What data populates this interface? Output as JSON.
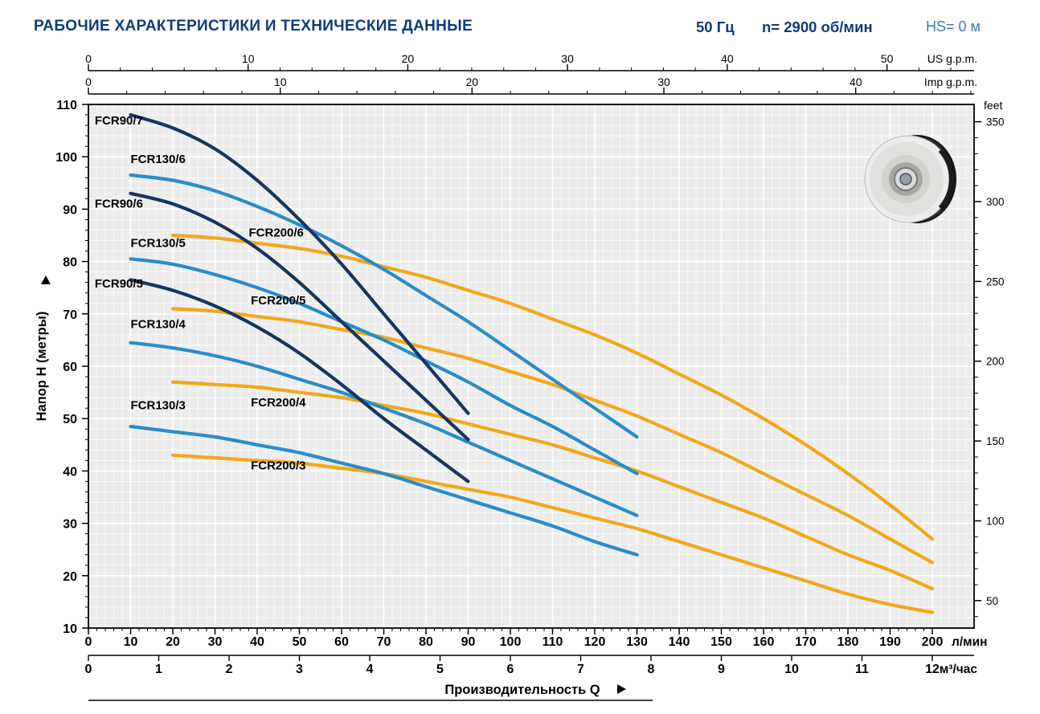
{
  "header": {
    "title": "РАБОЧИЕ ХАРАКТЕРИСТИКИ И ТЕХНИЧЕСКИЕ ДАННЫЕ",
    "frequency": "50 Гц",
    "speed": "n= 2900 об/мин",
    "hs": "HS= 0 м"
  },
  "colors": {
    "heading": "#0e3c7c",
    "hs_text": "#3d7ab8",
    "navy": "#16355f",
    "blue": "#2a8cc9",
    "orange": "#f2a71b",
    "plot_bg": "#ececec"
  },
  "impeller": {
    "name": "pump-impeller-photo"
  },
  "chart_data": {
    "type": "line",
    "title": "",
    "xlabel": "Производительность Q",
    "ylabel": "Напор H (метры)",
    "grid": true,
    "plot_bg": "#ececec",
    "x_axes": {
      "lmin": {
        "unit": "л/мин",
        "min": 0,
        "max": 200,
        "ticks": [
          0,
          10,
          20,
          30,
          40,
          50,
          60,
          70,
          80,
          90,
          100,
          110,
          120,
          130,
          140,
          150,
          160,
          170,
          180,
          190,
          200
        ]
      },
      "m3h": {
        "unit": "м³/час",
        "min": 0,
        "max": 12,
        "ticks": [
          0,
          1,
          2,
          3,
          4,
          5,
          6,
          7,
          8,
          9,
          10,
          11,
          12
        ],
        "lmin_per_unit": 16.6667
      },
      "us_gpm": {
        "unit": "US g.p.m.",
        "ticks": [
          0,
          10,
          20,
          30,
          40,
          50
        ],
        "lmin_per_unit": 3.785
      },
      "imp_gpm": {
        "unit": "Imp g.p.m.",
        "ticks": [
          0,
          10,
          20,
          30,
          40
        ],
        "lmin_per_unit": 4.546
      }
    },
    "y_axes": {
      "meters": {
        "unit": "метры",
        "min": 10,
        "max": 110,
        "ticks": [
          10,
          20,
          30,
          40,
          50,
          60,
          70,
          80,
          90,
          100,
          110
        ]
      },
      "feet": {
        "unit": "feet",
        "ticks": [
          50,
          100,
          150,
          200,
          250,
          300,
          350
        ],
        "m_per_unit": 0.3048
      }
    },
    "series": [
      {
        "name": "FCR200/6",
        "color": "#f2a71b",
        "label_pos": [
          38,
          84.8
        ],
        "points": [
          [
            20,
            85
          ],
          [
            30,
            84.5
          ],
          [
            40,
            83.5
          ],
          [
            50,
            82.5
          ],
          [
            60,
            81
          ],
          [
            70,
            79
          ],
          [
            80,
            77
          ],
          [
            90,
            74.5
          ],
          [
            100,
            72
          ],
          [
            110,
            69
          ],
          [
            120,
            66
          ],
          [
            130,
            62.5
          ],
          [
            140,
            58.5
          ],
          [
            150,
            54.5
          ],
          [
            160,
            50
          ],
          [
            170,
            45
          ],
          [
            180,
            39.5
          ],
          [
            190,
            33.5
          ],
          [
            200,
            27
          ]
        ]
      },
      {
        "name": "FCR200/5",
        "color": "#f2a71b",
        "label_pos": [
          38.5,
          71.8
        ],
        "points": [
          [
            20,
            71
          ],
          [
            30,
            70.5
          ],
          [
            40,
            69.5
          ],
          [
            50,
            68.5
          ],
          [
            60,
            67
          ],
          [
            70,
            65.5
          ],
          [
            80,
            63.5
          ],
          [
            90,
            61.5
          ],
          [
            100,
            59
          ],
          [
            110,
            56.5
          ],
          [
            120,
            53.5
          ],
          [
            130,
            50.5
          ],
          [
            140,
            47
          ],
          [
            150,
            43.5
          ],
          [
            160,
            39.5
          ],
          [
            170,
            35.5
          ],
          [
            180,
            31.5
          ],
          [
            190,
            27
          ],
          [
            200,
            22.5
          ]
        ]
      },
      {
        "name": "FCR200/4",
        "color": "#f2a71b",
        "label_pos": [
          38.5,
          52.3
        ],
        "points": [
          [
            20,
            57
          ],
          [
            30,
            56.5
          ],
          [
            40,
            56
          ],
          [
            50,
            55
          ],
          [
            60,
            54
          ],
          [
            70,
            52.5
          ],
          [
            80,
            51
          ],
          [
            90,
            49
          ],
          [
            100,
            47
          ],
          [
            110,
            45
          ],
          [
            120,
            42.5
          ],
          [
            130,
            40
          ],
          [
            140,
            37
          ],
          [
            150,
            34
          ],
          [
            160,
            31
          ],
          [
            170,
            27.5
          ],
          [
            180,
            24
          ],
          [
            190,
            21
          ],
          [
            200,
            17.5
          ]
        ]
      },
      {
        "name": "FCR200/3",
        "color": "#f2a71b",
        "label_pos": [
          38.5,
          40.3
        ],
        "points": [
          [
            20,
            43
          ],
          [
            30,
            42.5
          ],
          [
            40,
            42
          ],
          [
            50,
            41.5
          ],
          [
            60,
            40.5
          ],
          [
            70,
            39.5
          ],
          [
            80,
            38
          ],
          [
            90,
            36.5
          ],
          [
            100,
            35
          ],
          [
            110,
            33
          ],
          [
            120,
            31
          ],
          [
            130,
            29
          ],
          [
            140,
            26.5
          ],
          [
            150,
            24
          ],
          [
            160,
            21.5
          ],
          [
            170,
            19
          ],
          [
            180,
            16.5
          ],
          [
            190,
            14.5
          ],
          [
            200,
            13
          ]
        ]
      },
      {
        "name": "FCR130/6",
        "color": "#2a8cc9",
        "label_pos": [
          10,
          98.8
        ],
        "points": [
          [
            10,
            96.5
          ],
          [
            20,
            95.5
          ],
          [
            30,
            93.5
          ],
          [
            40,
            90.5
          ],
          [
            50,
            87
          ],
          [
            60,
            83
          ],
          [
            70,
            78.5
          ],
          [
            80,
            73.5
          ],
          [
            90,
            68.5
          ],
          [
            100,
            63
          ],
          [
            110,
            57.5
          ],
          [
            120,
            52
          ],
          [
            130,
            46.5
          ]
        ]
      },
      {
        "name": "FCR130/5",
        "color": "#2a8cc9",
        "label_pos": [
          10,
          82.8
        ],
        "points": [
          [
            10,
            80.5
          ],
          [
            20,
            79.5
          ],
          [
            30,
            77.5
          ],
          [
            40,
            75
          ],
          [
            50,
            72
          ],
          [
            60,
            68.5
          ],
          [
            70,
            65
          ],
          [
            80,
            61
          ],
          [
            90,
            57
          ],
          [
            100,
            52.5
          ],
          [
            110,
            48.5
          ],
          [
            120,
            44
          ],
          [
            130,
            39.5
          ]
        ]
      },
      {
        "name": "FCR130/4",
        "color": "#2a8cc9",
        "label_pos": [
          10,
          67.3
        ],
        "points": [
          [
            10,
            64.5
          ],
          [
            20,
            63.5
          ],
          [
            30,
            62
          ],
          [
            40,
            60
          ],
          [
            50,
            57.5
          ],
          [
            60,
            55
          ],
          [
            70,
            52
          ],
          [
            80,
            49
          ],
          [
            90,
            45.5
          ],
          [
            100,
            42
          ],
          [
            110,
            38.5
          ],
          [
            120,
            35
          ],
          [
            130,
            31.5
          ]
        ]
      },
      {
        "name": "FCR130/3",
        "color": "#2a8cc9",
        "label_pos": [
          10,
          51.8
        ],
        "points": [
          [
            10,
            48.5
          ],
          [
            20,
            47.5
          ],
          [
            30,
            46.5
          ],
          [
            40,
            45
          ],
          [
            50,
            43.5
          ],
          [
            60,
            41.5
          ],
          [
            70,
            39.5
          ],
          [
            80,
            37
          ],
          [
            90,
            34.5
          ],
          [
            100,
            32
          ],
          [
            110,
            29.5
          ],
          [
            120,
            26.5
          ],
          [
            130,
            24
          ]
        ]
      },
      {
        "name": "FCR90/7",
        "color": "#16355f",
        "label_pos": [
          1.5,
          106.2
        ],
        "points": [
          [
            10,
            108
          ],
          [
            20,
            105.5
          ],
          [
            30,
            101.5
          ],
          [
            40,
            95.5
          ],
          [
            50,
            88
          ],
          [
            60,
            79.5
          ],
          [
            70,
            70
          ],
          [
            80,
            60.5
          ],
          [
            90,
            51
          ]
        ]
      },
      {
        "name": "FCR90/6",
        "color": "#16355f",
        "label_pos": [
          1.5,
          90.3
        ],
        "points": [
          [
            10,
            93
          ],
          [
            20,
            91
          ],
          [
            30,
            87.5
          ],
          [
            40,
            82.5
          ],
          [
            50,
            76
          ],
          [
            60,
            68.5
          ],
          [
            70,
            61
          ],
          [
            80,
            53.5
          ],
          [
            90,
            46
          ]
        ]
      },
      {
        "name": "FCR90/5",
        "color": "#16355f",
        "label_pos": [
          1.5,
          75
        ],
        "points": [
          [
            10,
            76.5
          ],
          [
            20,
            74.5
          ],
          [
            30,
            71.5
          ],
          [
            40,
            67.5
          ],
          [
            50,
            62.5
          ],
          [
            60,
            56.5
          ],
          [
            70,
            50
          ],
          [
            80,
            44
          ],
          [
            90,
            38
          ]
        ]
      }
    ]
  }
}
